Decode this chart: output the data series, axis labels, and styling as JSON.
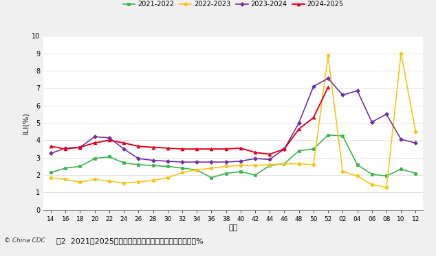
{
  "x_labels": [
    "14",
    "16",
    "18",
    "20",
    "22",
    "24",
    "26",
    "28",
    "30",
    "32",
    "34",
    "36",
    "38",
    "40",
    "42",
    "44",
    "46",
    "48",
    "50",
    "52",
    "02",
    "04",
    "06",
    "08",
    "10",
    "12"
  ],
  "x_vals": [
    14,
    16,
    18,
    20,
    22,
    24,
    26,
    28,
    30,
    32,
    34,
    36,
    38,
    40,
    42,
    44,
    46,
    48,
    50,
    52,
    54,
    56,
    58,
    60,
    62,
    64
  ],
  "series": {
    "2021-2022": {
      "color": "#3ab54a",
      "marker": "s",
      "markersize": 3.5,
      "linewidth": 1.2,
      "data": [
        2.15,
        2.4,
        2.5,
        2.95,
        3.05,
        2.7,
        2.6,
        2.55,
        2.5,
        2.4,
        2.3,
        1.85,
        2.1,
        2.2,
        2.0,
        2.55,
        2.65,
        3.4,
        3.5,
        4.3,
        4.25,
        2.6,
        2.05,
        1.95,
        2.35,
        2.1
      ]
    },
    "2022-2023": {
      "color": "#f5c518",
      "marker": "o",
      "markersize": 3.5,
      "linewidth": 1.2,
      "data": [
        1.85,
        1.75,
        1.6,
        1.75,
        1.65,
        1.55,
        1.6,
        1.7,
        1.85,
        2.15,
        2.3,
        2.4,
        2.5,
        2.55,
        2.55,
        2.6,
        2.65,
        2.65,
        2.6,
        8.85,
        2.2,
        1.95,
        1.45,
        1.3,
        9.0,
        4.5
      ]
    },
    "2023-2024": {
      "color": "#7030a0",
      "marker": "D",
      "markersize": 3.0,
      "linewidth": 1.2,
      "data": [
        3.25,
        3.55,
        3.6,
        4.2,
        4.15,
        3.5,
        2.95,
        2.85,
        2.8,
        2.75,
        2.75,
        2.75,
        2.75,
        2.8,
        2.95,
        2.9,
        3.5,
        5.0,
        7.1,
        7.55,
        6.6,
        6.85,
        5.05,
        5.5,
        4.05,
        3.85
      ]
    },
    "2024-2025": {
      "color": "#e3001b",
      "marker": "^",
      "markersize": 3.5,
      "linewidth": 1.4,
      "data": [
        3.65,
        3.5,
        3.6,
        3.85,
        4.0,
        3.85,
        3.65,
        3.6,
        3.55,
        3.5,
        3.5,
        3.5,
        3.5,
        3.55,
        3.3,
        3.2,
        3.5,
        4.65,
        5.3,
        7.05,
        null,
        null,
        null,
        null,
        null,
        null
      ]
    }
  },
  "ylabel": "ILI(%)",
  "xlabel": "周次",
  "ylim": [
    0,
    10
  ],
  "yticks": [
    0,
    1,
    2,
    3,
    4,
    5,
    6,
    7,
    8,
    9,
    10
  ],
  "fig_bg": "#f0f0f0",
  "plot_bg": "#ffffff",
  "caption_prefix": "图2  2021－2025年度北方省份哨点医院报告的流感样病例%",
  "watermark": "© China CDC",
  "legend_order": [
    "2021-2022",
    "2022-2023",
    "2023-2024",
    "2024-2025"
  ]
}
